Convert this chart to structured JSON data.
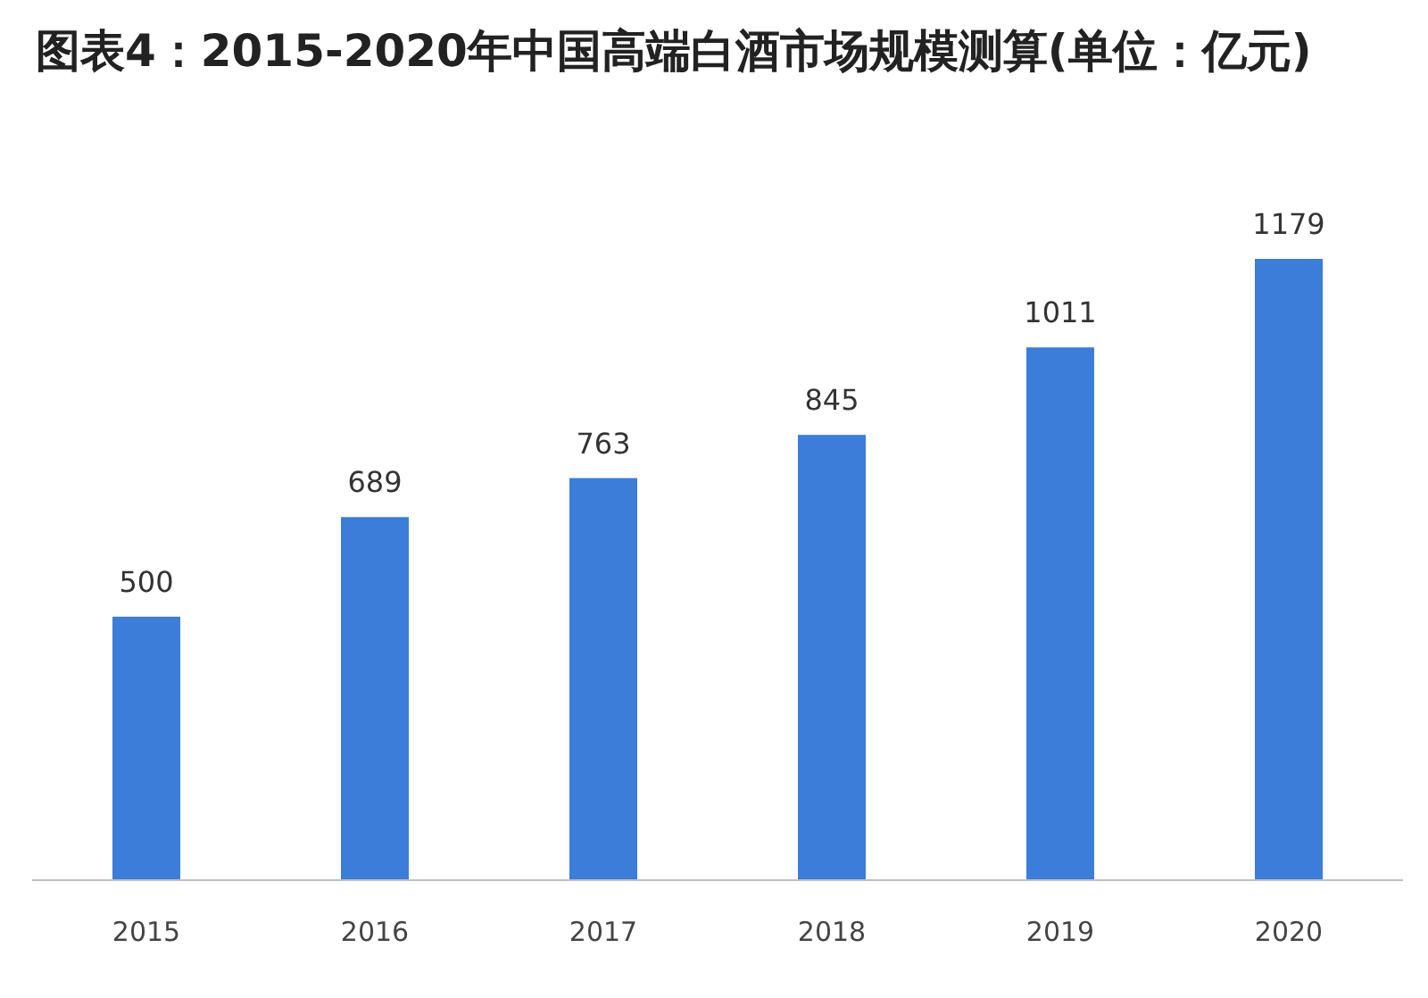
{
  "chart_data": {
    "type": "bar",
    "title": "图表4：2015-2020年中国高端白酒市场规模测算(单位：亿元)",
    "categories": [
      "2015",
      "2016",
      "2017",
      "2018",
      "2019",
      "2020"
    ],
    "values": [
      500,
      689,
      763,
      845,
      1011,
      1179
    ],
    "color": "#3b7dd8",
    "data_labels": true
  }
}
